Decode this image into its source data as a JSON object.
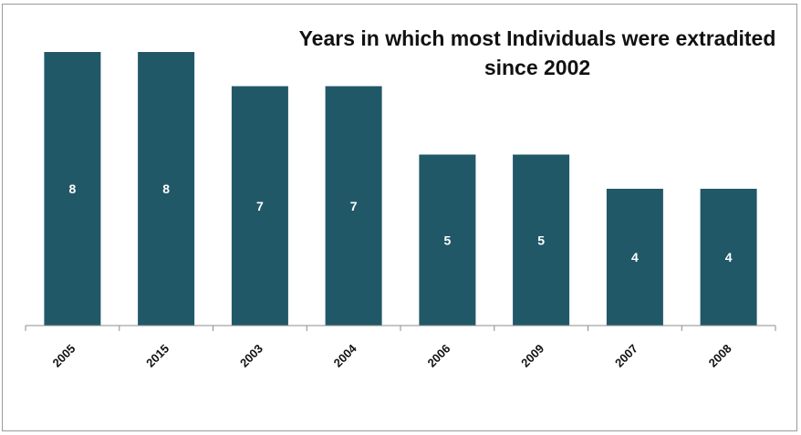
{
  "chart_data": {
    "type": "bar",
    "title": "Years in which most Individuals were extradited since 2002",
    "categories": [
      "2005",
      "2015",
      "2003",
      "2004",
      "2006",
      "2009",
      "2007",
      "2008"
    ],
    "values": [
      8,
      8,
      7,
      7,
      5,
      5,
      4,
      4
    ],
    "xlabel": "",
    "ylabel": "",
    "ylim": [
      0,
      8
    ],
    "grid": false,
    "legend": "none",
    "bar_color": "#215868",
    "data_labels": true
  }
}
